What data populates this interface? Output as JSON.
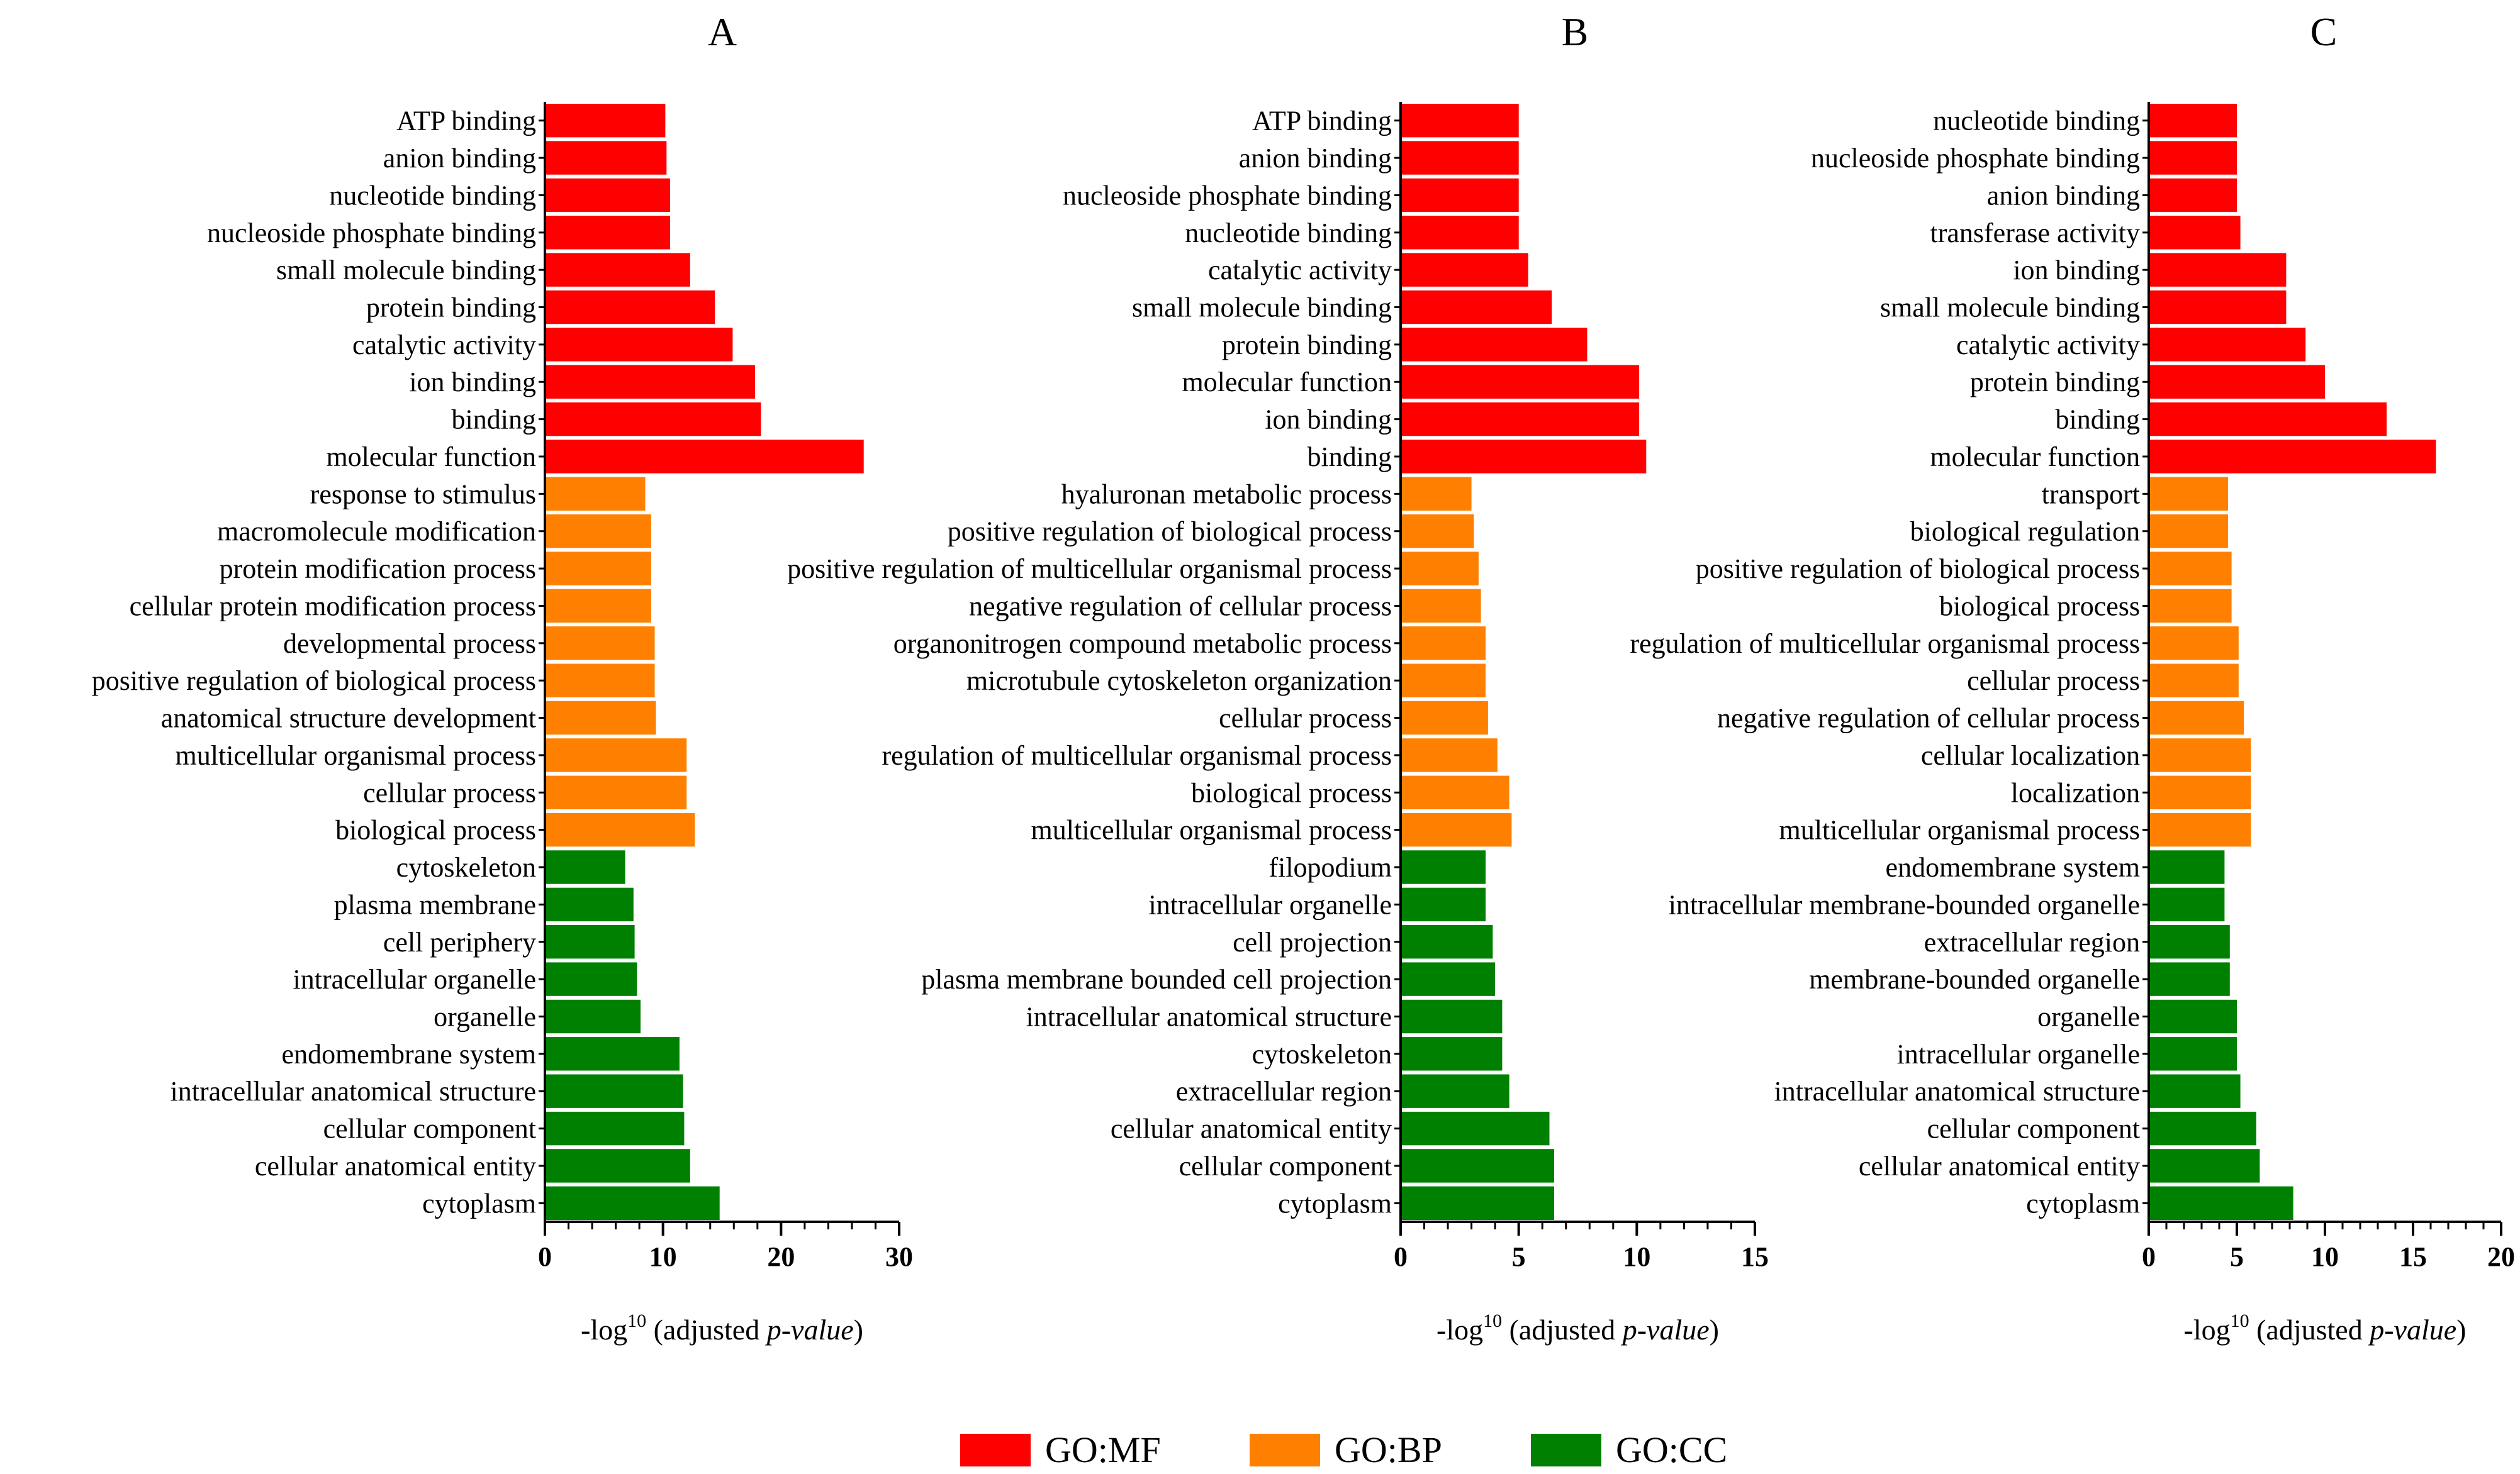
{
  "colors": {
    "MF": "#ff0000",
    "BP": "#ff8000",
    "CC": "#008000"
  },
  "legend": [
    {
      "key": "MF",
      "label": "GO:MF"
    },
    {
      "key": "BP",
      "label": "GO:BP"
    },
    {
      "key": "CC",
      "label": "GO:CC"
    }
  ],
  "xlabel": {
    "prefix": "-log",
    "sup": "10",
    "middle": " (adjusted ",
    "italic": "p-value",
    "suffix": ")"
  },
  "chart_data": [
    {
      "type": "bar",
      "orientation": "horizontal",
      "title": "A",
      "xlim": [
        0,
        30
      ],
      "ticks": [
        0,
        10,
        20,
        30
      ],
      "minor_step": 2,
      "categories": [
        "ATP binding",
        "anion binding",
        "nucleotide binding",
        "nucleoside phosphate binding",
        "small molecule binding",
        "protein binding",
        "catalytic activity",
        "ion binding",
        "binding",
        "molecular function",
        "response to stimulus",
        "macromolecule modification",
        "protein modification process",
        "cellular protein modification process",
        "developmental process",
        "positive regulation of biological process",
        "anatomical structure development",
        "multicellular organismal process",
        "cellular process",
        "biological process",
        "cytoskeleton",
        "plasma membrane",
        "cell periphery",
        "intracellular organelle",
        "organelle",
        "endomembrane system",
        "intracellular anatomical structure",
        "cellular component",
        "cellular anatomical entity",
        "cytoplasm"
      ],
      "groups": [
        "MF",
        "MF",
        "MF",
        "MF",
        "MF",
        "MF",
        "MF",
        "MF",
        "MF",
        "MF",
        "BP",
        "BP",
        "BP",
        "BP",
        "BP",
        "BP",
        "BP",
        "BP",
        "BP",
        "BP",
        "CC",
        "CC",
        "CC",
        "CC",
        "CC",
        "CC",
        "CC",
        "CC",
        "CC",
        "CC"
      ],
      "values": [
        10.2,
        10.3,
        10.6,
        10.6,
        12.3,
        14.4,
        15.9,
        17.8,
        18.3,
        27.0,
        8.5,
        9.0,
        9.0,
        9.0,
        9.3,
        9.3,
        9.4,
        12.0,
        12.0,
        12.7,
        6.8,
        7.5,
        7.6,
        7.8,
        8.1,
        11.4,
        11.7,
        11.8,
        12.3,
        14.8
      ]
    },
    {
      "type": "bar",
      "orientation": "horizontal",
      "title": "B",
      "xlim": [
        0,
        15
      ],
      "ticks": [
        0,
        5,
        10,
        15
      ],
      "minor_step": 1,
      "categories": [
        "ATP binding",
        "anion binding",
        "nucleoside phosphate binding",
        "nucleotide binding",
        "catalytic activity",
        "small molecule binding",
        "protein binding",
        "molecular function",
        "ion binding",
        "binding",
        "hyaluronan metabolic process",
        "positive regulation of biological process",
        "positive regulation of multicellular organismal process",
        "negative regulation of cellular process",
        "organonitrogen compound metabolic process",
        "microtubule cytoskeleton organization",
        "cellular process",
        "regulation of multicellular organismal process",
        "biological process",
        "multicellular organismal process",
        "filopodium",
        "intracellular organelle",
        "cell projection",
        "plasma membrane bounded cell projection",
        "intracellular anatomical structure",
        "cytoskeleton",
        "extracellular region",
        "cellular anatomical entity",
        "cellular component",
        "cytoplasm"
      ],
      "groups": [
        "MF",
        "MF",
        "MF",
        "MF",
        "MF",
        "MF",
        "MF",
        "MF",
        "MF",
        "MF",
        "BP",
        "BP",
        "BP",
        "BP",
        "BP",
        "BP",
        "BP",
        "BP",
        "BP",
        "BP",
        "CC",
        "CC",
        "CC",
        "CC",
        "CC",
        "CC",
        "CC",
        "CC",
        "CC",
        "CC"
      ],
      "values": [
        5.0,
        5.0,
        5.0,
        5.0,
        5.4,
        6.4,
        7.9,
        10.1,
        10.1,
        10.4,
        3.0,
        3.1,
        3.3,
        3.4,
        3.6,
        3.6,
        3.7,
        4.1,
        4.6,
        4.7,
        3.6,
        3.6,
        3.9,
        4.0,
        4.3,
        4.3,
        4.6,
        6.3,
        6.5,
        6.5
      ]
    },
    {
      "type": "bar",
      "orientation": "horizontal",
      "title": "C",
      "xlim": [
        0,
        20
      ],
      "ticks": [
        0,
        5,
        10,
        15,
        20
      ],
      "minor_step": 1,
      "categories": [
        "nucleotide binding",
        "nucleoside phosphate binding",
        "anion binding",
        "transferase activity",
        "ion binding",
        "small molecule binding",
        "catalytic activity",
        "protein binding",
        "binding",
        "molecular function",
        "transport",
        "biological regulation",
        "positive regulation of biological process",
        "biological process",
        "regulation of multicellular organismal process",
        "cellular process",
        "negative regulation of cellular process",
        "cellular localization",
        "localization",
        "multicellular organismal process",
        "endomembrane system",
        "intracellular membrane-bounded organelle",
        "extracellular region",
        "membrane-bounded organelle",
        "organelle",
        "intracellular organelle",
        "intracellular anatomical structure",
        "cellular component",
        "cellular anatomical entity",
        "cytoplasm"
      ],
      "groups": [
        "MF",
        "MF",
        "MF",
        "MF",
        "MF",
        "MF",
        "MF",
        "MF",
        "MF",
        "MF",
        "BP",
        "BP",
        "BP",
        "BP",
        "BP",
        "BP",
        "BP",
        "BP",
        "BP",
        "BP",
        "CC",
        "CC",
        "CC",
        "CC",
        "CC",
        "CC",
        "CC",
        "CC",
        "CC",
        "CC"
      ],
      "values": [
        5.0,
        5.0,
        5.0,
        5.2,
        7.8,
        7.8,
        8.9,
        10.0,
        13.5,
        16.3,
        4.5,
        4.5,
        4.7,
        4.7,
        5.1,
        5.1,
        5.4,
        5.8,
        5.8,
        5.8,
        4.3,
        4.3,
        4.6,
        4.6,
        5.0,
        5.0,
        5.2,
        6.1,
        6.3,
        8.2
      ]
    }
  ]
}
